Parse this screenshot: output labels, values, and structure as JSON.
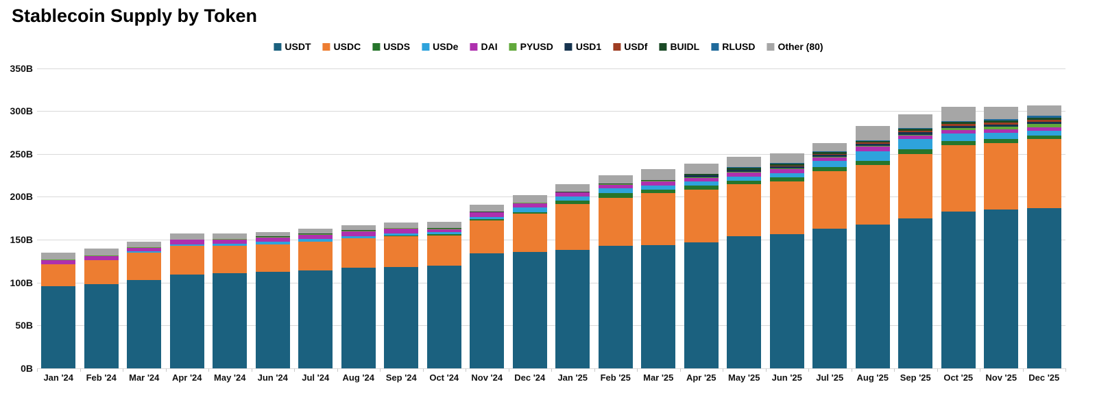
{
  "chart_data": {
    "type": "bar",
    "stacked": true,
    "title": "Stablecoin Supply by Token",
    "unit": "billions USD",
    "legend_position": "top-center",
    "grid": true,
    "ylim": [
      0,
      350
    ],
    "y_tick_labels": [
      "0B",
      "50B",
      "100B",
      "150B",
      "200B",
      "250B",
      "300B",
      "350B"
    ],
    "categories": [
      "Jan '24",
      "Feb '24",
      "Mar '24",
      "Apr '24",
      "May '24",
      "Jun '24",
      "Jul '24",
      "Aug '24",
      "Sep '24",
      "Oct '24",
      "Nov '24",
      "Dec '24",
      "Jan '25",
      "Feb '25",
      "Mar '25",
      "Apr '25",
      "May '25",
      "Jun '25",
      "Jul '25",
      "Aug '25",
      "Sep '25",
      "Oct '25",
      "Nov '25",
      "Dec '25"
    ],
    "series": [
      {
        "name": "USDT",
        "color": "#1B617F",
        "values": [
          96,
          98,
          103,
          109,
          111,
          112.5,
          114,
          117,
          118.5,
          120,
          134,
          136,
          138,
          143,
          144,
          147,
          154,
          156.5,
          163,
          168,
          175,
          183,
          185,
          187
        ]
      },
      {
        "name": "USDC",
        "color": "#ED7D31",
        "values": [
          25.5,
          28,
          32,
          33.5,
          31.5,
          32,
          33.5,
          34.5,
          35.5,
          35,
          38.5,
          44,
          53.5,
          56,
          60,
          61.5,
          60.5,
          61.5,
          67,
          69,
          75,
          77,
          77.5,
          80
        ]
      },
      {
        "name": "USDS",
        "color": "#26752B",
        "values": [
          0,
          0,
          0,
          0,
          0,
          0,
          0,
          0,
          1,
          1.2,
          1.5,
          2,
          4,
          5.3,
          4.5,
          4.4,
          4.3,
          4.6,
          5,
          4.8,
          5.3,
          4.8,
          4.6,
          4.5
        ]
      },
      {
        "name": "USDe",
        "color": "#2EA3DC",
        "values": [
          0,
          0.3,
          1.3,
          2.3,
          2.5,
          3,
          3.2,
          2.8,
          2.6,
          2.7,
          2.8,
          5.3,
          5,
          5.5,
          5,
          4.8,
          5,
          5.3,
          7,
          11.4,
          12,
          9,
          7.5,
          5.8
        ]
      },
      {
        "name": "DAI",
        "color": "#AE30AE",
        "values": [
          4.8,
          4.9,
          4.6,
          5,
          5.2,
          5.3,
          5.3,
          5.3,
          5,
          3.5,
          5,
          5,
          4.3,
          4.3,
          4.2,
          4.2,
          4.3,
          4.4,
          4,
          5.3,
          4,
          4,
          4,
          4
        ]
      },
      {
        "name": "PYUSD",
        "color": "#62A93C",
        "values": [
          0.3,
          0.3,
          0.3,
          0.2,
          0.3,
          0.4,
          0.6,
          1,
          0.7,
          0.6,
          0.6,
          0.5,
          0.5,
          0.6,
          0.7,
          0.8,
          0.9,
          1,
          0.9,
          1.1,
          1.3,
          2.5,
          3,
          4
        ]
      },
      {
        "name": "USD1",
        "color": "#17344F",
        "values": [
          0,
          0,
          0,
          0,
          0,
          0,
          0,
          0,
          0,
          0,
          0,
          0,
          0,
          0,
          0,
          2.1,
          2.2,
          2.2,
          2.2,
          2.4,
          2.7,
          2.6,
          2.5,
          2.4
        ]
      },
      {
        "name": "USDf",
        "color": "#9E3D22",
        "values": [
          0,
          0,
          0,
          0,
          0,
          0,
          0,
          0,
          0,
          0,
          0,
          0,
          0,
          0,
          0,
          0,
          0,
          0.5,
          0.8,
          1.2,
          1.5,
          2,
          2.2,
          2.4
        ]
      },
      {
        "name": "BUIDL",
        "color": "#1B4A26",
        "values": [
          0,
          0,
          0.3,
          0.4,
          0.45,
          0.5,
          0.5,
          0.5,
          0.5,
          0.5,
          0.55,
          0.65,
          0.65,
          0.65,
          1,
          2,
          2.9,
          2.8,
          2.4,
          2.2,
          2.5,
          2.4,
          2.4,
          2.4
        ]
      },
      {
        "name": "RLUSD",
        "color": "#1F6A9B",
        "values": [
          0,
          0,
          0,
          0,
          0,
          0,
          0,
          0,
          0,
          0,
          0,
          0.1,
          0.1,
          0.15,
          0.15,
          0.3,
          0.4,
          0.5,
          0.6,
          0.7,
          0.8,
          1,
          1.5,
          2.4
        ]
      },
      {
        "name": "Other (80)",
        "color": "#A6A6A6",
        "values": [
          8.4,
          8.5,
          6.5,
          7,
          6,
          5.5,
          6,
          6,
          6.2,
          7,
          8,
          8.5,
          9,
          9.5,
          12.5,
          12,
          12,
          11,
          9.5,
          16.5,
          16,
          16.5,
          15,
          11.7
        ]
      }
    ]
  },
  "colors": {
    "background": "#FFFFFF",
    "gridline": "#D9D9D9",
    "text": "#000000"
  }
}
